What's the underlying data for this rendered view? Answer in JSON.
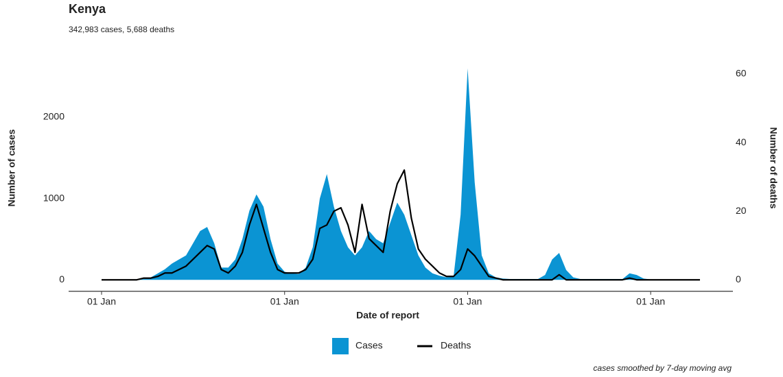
{
  "chart_data": {
    "type": "combo",
    "title": "Kenya",
    "subtitle": "342,983 cases, 5,688 deaths",
    "x_label": "Date of report",
    "y_label": "Number of cases",
    "y2_label": "Number of deaths",
    "caption": "cases smoothed by 7-day moving avg",
    "categories": [
      "01 Jan",
      null,
      null,
      null,
      null,
      null,
      null,
      null,
      null,
      null,
      null,
      null,
      null,
      null,
      null,
      null,
      null,
      null,
      null,
      null,
      null,
      null,
      null,
      null,
      null,
      null,
      "01 Jan",
      null,
      null,
      null,
      null,
      null,
      null,
      null,
      null,
      null,
      null,
      null,
      null,
      null,
      null,
      null,
      null,
      null,
      null,
      null,
      null,
      null,
      null,
      null,
      null,
      null,
      "01 Jan",
      null,
      null,
      null,
      null,
      null,
      null,
      null,
      null,
      null,
      null,
      null,
      null,
      null,
      null,
      null,
      null,
      null,
      null,
      null,
      null,
      null,
      null,
      null,
      null,
      null,
      "01 Jan",
      null,
      null,
      null,
      null,
      null,
      null,
      null
    ],
    "series": [
      {
        "name": "Cases",
        "type": "area",
        "color": "#0b94d3",
        "values": [
          0,
          0,
          0,
          0,
          0,
          5,
          10,
          30,
          80,
          130,
          200,
          250,
          300,
          450,
          600,
          650,
          450,
          150,
          150,
          250,
          500,
          850,
          1050,
          900,
          500,
          200,
          100,
          80,
          70,
          150,
          400,
          1000,
          1300,
          900,
          600,
          400,
          300,
          400,
          600,
          500,
          450,
          700,
          950,
          800,
          550,
          300,
          150,
          80,
          50,
          30,
          40,
          800,
          2600,
          1200,
          300,
          80,
          30,
          15,
          10,
          10,
          10,
          10,
          10,
          60,
          250,
          330,
          120,
          30,
          10,
          10,
          10,
          10,
          10,
          10,
          10,
          80,
          60,
          15,
          5,
          5,
          5,
          5,
          5,
          5,
          5,
          5
        ]
      },
      {
        "name": "Deaths",
        "type": "line",
        "color": "#000000",
        "axis": "y2",
        "values": [
          0,
          0,
          0,
          0,
          0,
          0,
          0.5,
          0.5,
          1,
          2,
          2,
          3,
          4,
          6,
          8,
          10,
          9,
          3,
          2,
          4,
          8,
          16,
          22,
          15,
          8,
          3,
          2,
          2,
          2,
          3,
          6,
          15,
          16,
          20,
          21,
          16,
          8,
          22,
          12,
          10,
          8,
          20,
          28,
          32,
          18,
          9,
          6,
          4,
          2,
          1,
          1,
          3,
          9,
          7,
          4,
          1,
          0.5,
          0,
          0,
          0,
          0,
          0,
          0,
          0,
          0,
          1.5,
          0,
          0,
          0,
          0,
          0,
          0,
          0,
          0,
          0,
          0.5,
          0,
          0,
          0,
          0,
          0,
          0,
          0,
          0,
          0,
          0
        ]
      }
    ],
    "ylim": [
      -150,
      2750
    ],
    "yticks": [
      0,
      1000,
      2000
    ],
    "y2lim": [
      -3.55,
      65.2
    ],
    "y2ticks": [
      0,
      20,
      40,
      60
    ],
    "grid": false,
    "legend": "bottom"
  }
}
